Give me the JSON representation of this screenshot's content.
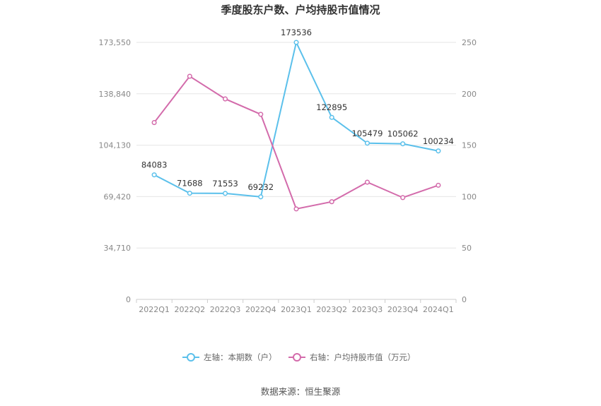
{
  "chart_data": {
    "type": "line",
    "title": "季度股东户数、户均持股市值情况",
    "categories": [
      "2022Q1",
      "2022Q2",
      "2022Q3",
      "2022Q4",
      "2023Q1",
      "2023Q2",
      "2023Q3",
      "2023Q4",
      "2024Q1"
    ],
    "series": [
      {
        "name": "左轴：本期数（户）",
        "axis": "left",
        "color": "#5bc0eb",
        "values": [
          84083,
          71688,
          71553,
          69232,
          173536,
          122895,
          105479,
          105062,
          100234
        ],
        "labels": [
          "84083",
          "71688",
          "71553",
          "69232",
          "173536",
          "122895",
          "105479",
          "105062",
          "100234"
        ]
      },
      {
        "name": "右轴：户均持股市值（万元）",
        "axis": "right",
        "color": "#d36bab",
        "values": [
          172,
          217,
          195,
          180,
          88,
          95,
          114,
          99,
          111
        ]
      }
    ],
    "left_axis": {
      "ylim": [
        0,
        173550
      ],
      "ticks": [
        0,
        34710,
        69420,
        104130,
        138840,
        173550
      ],
      "tick_labels": [
        "0",
        "34,710",
        "69,420",
        "104,130",
        "138,840",
        "173,550"
      ]
    },
    "right_axis": {
      "ylim": [
        0,
        250
      ],
      "ticks": [
        0,
        50,
        100,
        150,
        200,
        250
      ],
      "tick_labels": [
        "0",
        "50",
        "100",
        "150",
        "200",
        "250"
      ]
    },
    "grid": true,
    "legend_position": "bottom"
  },
  "source": "数据来源：恒生聚源"
}
